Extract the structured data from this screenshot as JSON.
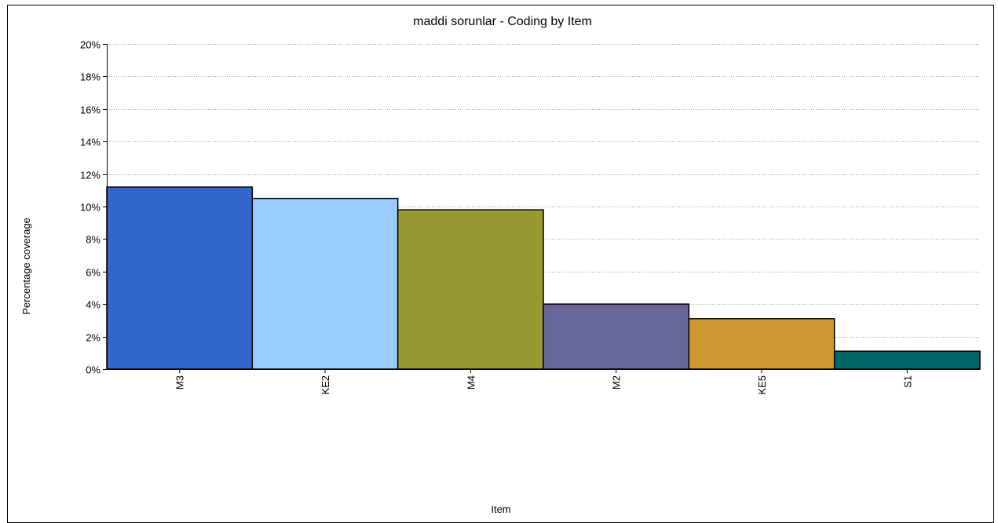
{
  "chart_data": {
    "type": "bar",
    "title": "maddi sorunlar - Coding by Item",
    "xlabel": "Item",
    "ylabel": "Percentage coverage",
    "categories": [
      "M3",
      "KE2",
      "M4",
      "M2",
      "KE5",
      "S1"
    ],
    "values": [
      11.2,
      10.5,
      9.8,
      4.0,
      3.1,
      1.1
    ],
    "colors": [
      "#3366cc",
      "#99ccff",
      "#999933",
      "#666699",
      "#cc9933",
      "#006666"
    ],
    "ylim": [
      0,
      20
    ],
    "yticks": [
      0,
      2,
      4,
      6,
      8,
      10,
      12,
      14,
      16,
      18,
      20
    ],
    "ytick_labels": [
      "0%",
      "2%",
      "4%",
      "6%",
      "8%",
      "10%",
      "12%",
      "14%",
      "16%",
      "18%",
      "20%"
    ],
    "grid": "horizontal dotted",
    "legend": "none"
  }
}
